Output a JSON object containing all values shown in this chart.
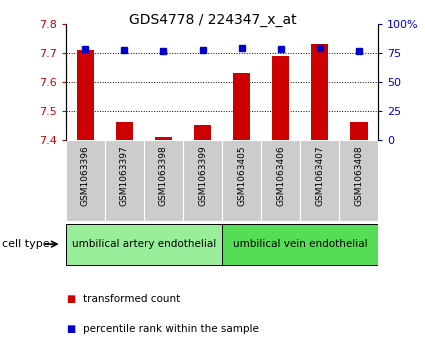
{
  "title": "GDS4778 / 224347_x_at",
  "samples": [
    "GSM1063396",
    "GSM1063397",
    "GSM1063398",
    "GSM1063399",
    "GSM1063405",
    "GSM1063406",
    "GSM1063407",
    "GSM1063408"
  ],
  "red_values": [
    7.71,
    7.46,
    7.41,
    7.45,
    7.63,
    7.69,
    7.73,
    7.46
  ],
  "blue_values": [
    78,
    77,
    76,
    77,
    79,
    78,
    79,
    76
  ],
  "ylim_left": [
    7.4,
    7.8
  ],
  "ylim_right": [
    0,
    100
  ],
  "yticks_left": [
    7.4,
    7.5,
    7.6,
    7.7,
    7.8
  ],
  "yticks_right": [
    0,
    25,
    50,
    75,
    100
  ],
  "ytick_labels_right": [
    "0",
    "25",
    "50",
    "75",
    "100%"
  ],
  "bar_color": "#cc0000",
  "dot_color": "#0000cc",
  "bar_width": 0.45,
  "cell_type_groups": [
    {
      "label": "umbilical artery endothelial",
      "start": 0,
      "end": 4,
      "color": "#99ee99"
    },
    {
      "label": "umbilical vein endothelial",
      "start": 4,
      "end": 8,
      "color": "#55dd55"
    }
  ],
  "cell_type_label": "cell type",
  "legend_red": "transformed count",
  "legend_blue": "percentile rank within the sample",
  "tick_label_color_left": "#cc0000",
  "tick_label_color_right": "#0000cc",
  "sample_box_color": "#cccccc",
  "sample_box_edge": "#aaaaaa"
}
